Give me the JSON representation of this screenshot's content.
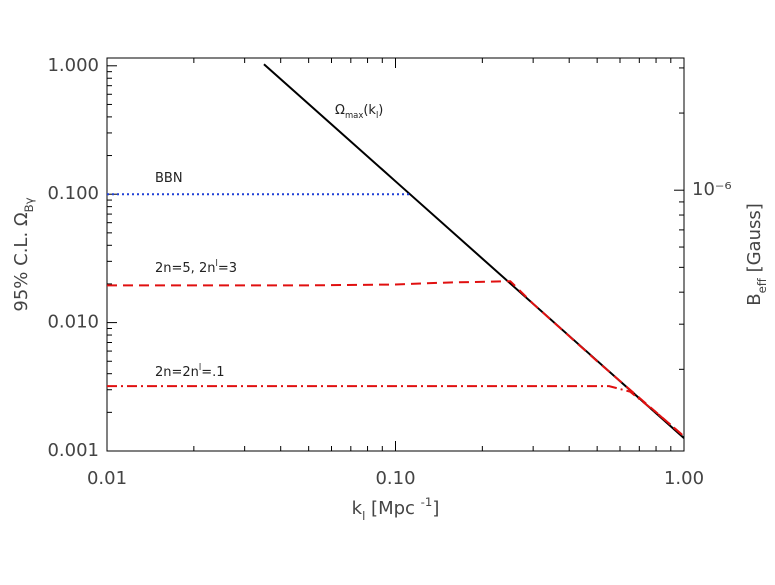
{
  "chart_data": {
    "type": "line",
    "xlabel": [
      "k",
      "l",
      "   [Mpc ",
      "-1",
      "]"
    ],
    "ylabel": [
      "95%   C.L.   Ω",
      "Bγ"
    ],
    "y2label": [
      "B",
      "eff",
      "    [Gauss]"
    ],
    "xscale": "log",
    "yscale": "log",
    "y2scale": "log",
    "xlim": [
      0.01,
      1.0
    ],
    "ylim": [
      0.001,
      1.15
    ],
    "y2lim": [
      9.6e-08,
      3.28e-06
    ],
    "xticks": [
      0.01,
      {
        "value": 0.1,
        "label": "0.10"
      },
      {
        "value": 1.0,
        "label": "1.00"
      }
    ],
    "xminorticks": [
      0.02,
      0.03,
      0.04,
      0.05,
      0.06,
      0.07,
      0.08,
      0.09,
      0.2,
      0.3,
      0.4,
      0.5,
      0.6,
      0.7,
      0.8,
      0.9
    ],
    "yticks": [
      {
        "value": 0.001,
        "label": "0.001"
      },
      {
        "value": 0.01,
        "label": "0.010"
      },
      {
        "value": 0.1,
        "label": "0.100"
      },
      {
        "value": 1.0,
        "label": "1.000"
      }
    ],
    "yminorticks": [
      0.002,
      0.003,
      0.004,
      0.005,
      0.006,
      0.007,
      0.008,
      0.009,
      0.02,
      0.03,
      0.04,
      0.05,
      0.06,
      0.07,
      0.08,
      0.09,
      0.2,
      0.3,
      0.4,
      0.5,
      0.6,
      0.7,
      0.8,
      0.9
    ],
    "y2ticks": [
      {
        "value": 1e-06,
        "label": "10⁻⁶"
      }
    ],
    "y2minorticks": [
      2e-07,
      3e-07,
      4e-07,
      5e-07,
      6e-07,
      7e-07,
      8e-07,
      9e-07,
      2e-06,
      3e-06
    ],
    "series": [
      {
        "color": "#000000",
        "style": "solid",
        "x": [
          0.035,
          0.1,
          0.2,
          0.5,
          1.0
        ],
        "values": [
          1.029,
          0.126,
          0.0315,
          0.00504,
          0.00126
        ]
      },
      {
        "color": "#1f3fd6",
        "style": "dotted",
        "x": [
          0.01,
          0.113
        ],
        "values": [
          0.1,
          0.1
        ]
      },
      {
        "color": "#e01010",
        "style": "dashed",
        "x": [
          0.01,
          0.05,
          0.1,
          0.15,
          0.25,
          0.3,
          0.5,
          0.7,
          1.0
        ],
        "values": [
          0.0195,
          0.0195,
          0.0198,
          0.0205,
          0.021,
          0.014,
          0.005,
          0.0026,
          0.0013
        ]
      },
      {
        "color": "#e01010",
        "style": "dashdot",
        "x": [
          0.01,
          0.3,
          0.55,
          0.65,
          0.8,
          1.0
        ],
        "values": [
          0.0032,
          0.0032,
          0.0032,
          0.0029,
          0.002,
          0.0013
        ]
      }
    ],
    "annotations": [
      [
        "Ω",
        "max",
        "(k",
        "l",
        ")"
      ],
      [
        "BBN"
      ],
      [
        "2n=5,  2n",
        "l",
        "=3"
      ],
      [
        "2n=2n",
        "l",
        "=.1"
      ]
    ]
  }
}
